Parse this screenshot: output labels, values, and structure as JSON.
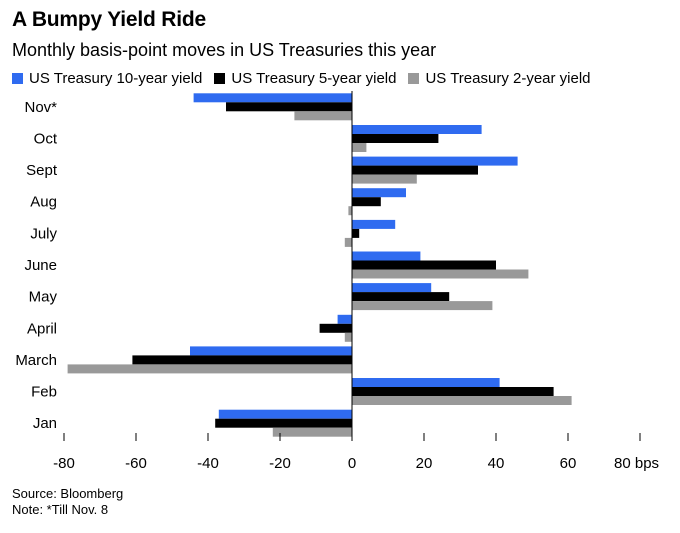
{
  "chart_data": {
    "type": "bar",
    "orientation": "horizontal",
    "title": "A Bumpy Yield Ride",
    "subtitle": "Monthly basis-point moves in US Treasuries this year",
    "categories": [
      "Nov*",
      "Oct",
      "Sept",
      "Aug",
      "July",
      "June",
      "May",
      "April",
      "March",
      "Feb",
      "Jan"
    ],
    "series": [
      {
        "name": "US Treasury 10-year yield",
        "color": "#2f6bf0",
        "values": [
          -44,
          36,
          46,
          15,
          12,
          19,
          22,
          -4,
          -45,
          41,
          -37
        ]
      },
      {
        "name": "US Treasury 5-year yield",
        "color": "#000000",
        "values": [
          -35,
          24,
          35,
          8,
          2,
          40,
          27,
          -9,
          -61,
          56,
          -38
        ]
      },
      {
        "name": "US Treasury 2-year yield",
        "color": "#999999",
        "values": [
          -16,
          4,
          18,
          -1,
          -2,
          49,
          39,
          -2,
          -79,
          61,
          -22
        ]
      }
    ],
    "xlim": [
      -80,
      80
    ],
    "xticks": [
      -80,
      -60,
      -40,
      -20,
      0,
      20,
      40,
      60,
      80
    ],
    "xtick_labels": [
      "-80",
      "-60",
      "-40",
      "-20",
      "0",
      "20",
      "40",
      "60",
      "80 bps"
    ],
    "xlabel": "bps",
    "legend_position": "top"
  },
  "footer": {
    "source": "Source: Bloomberg",
    "note": "Note: *Till Nov. 8"
  }
}
